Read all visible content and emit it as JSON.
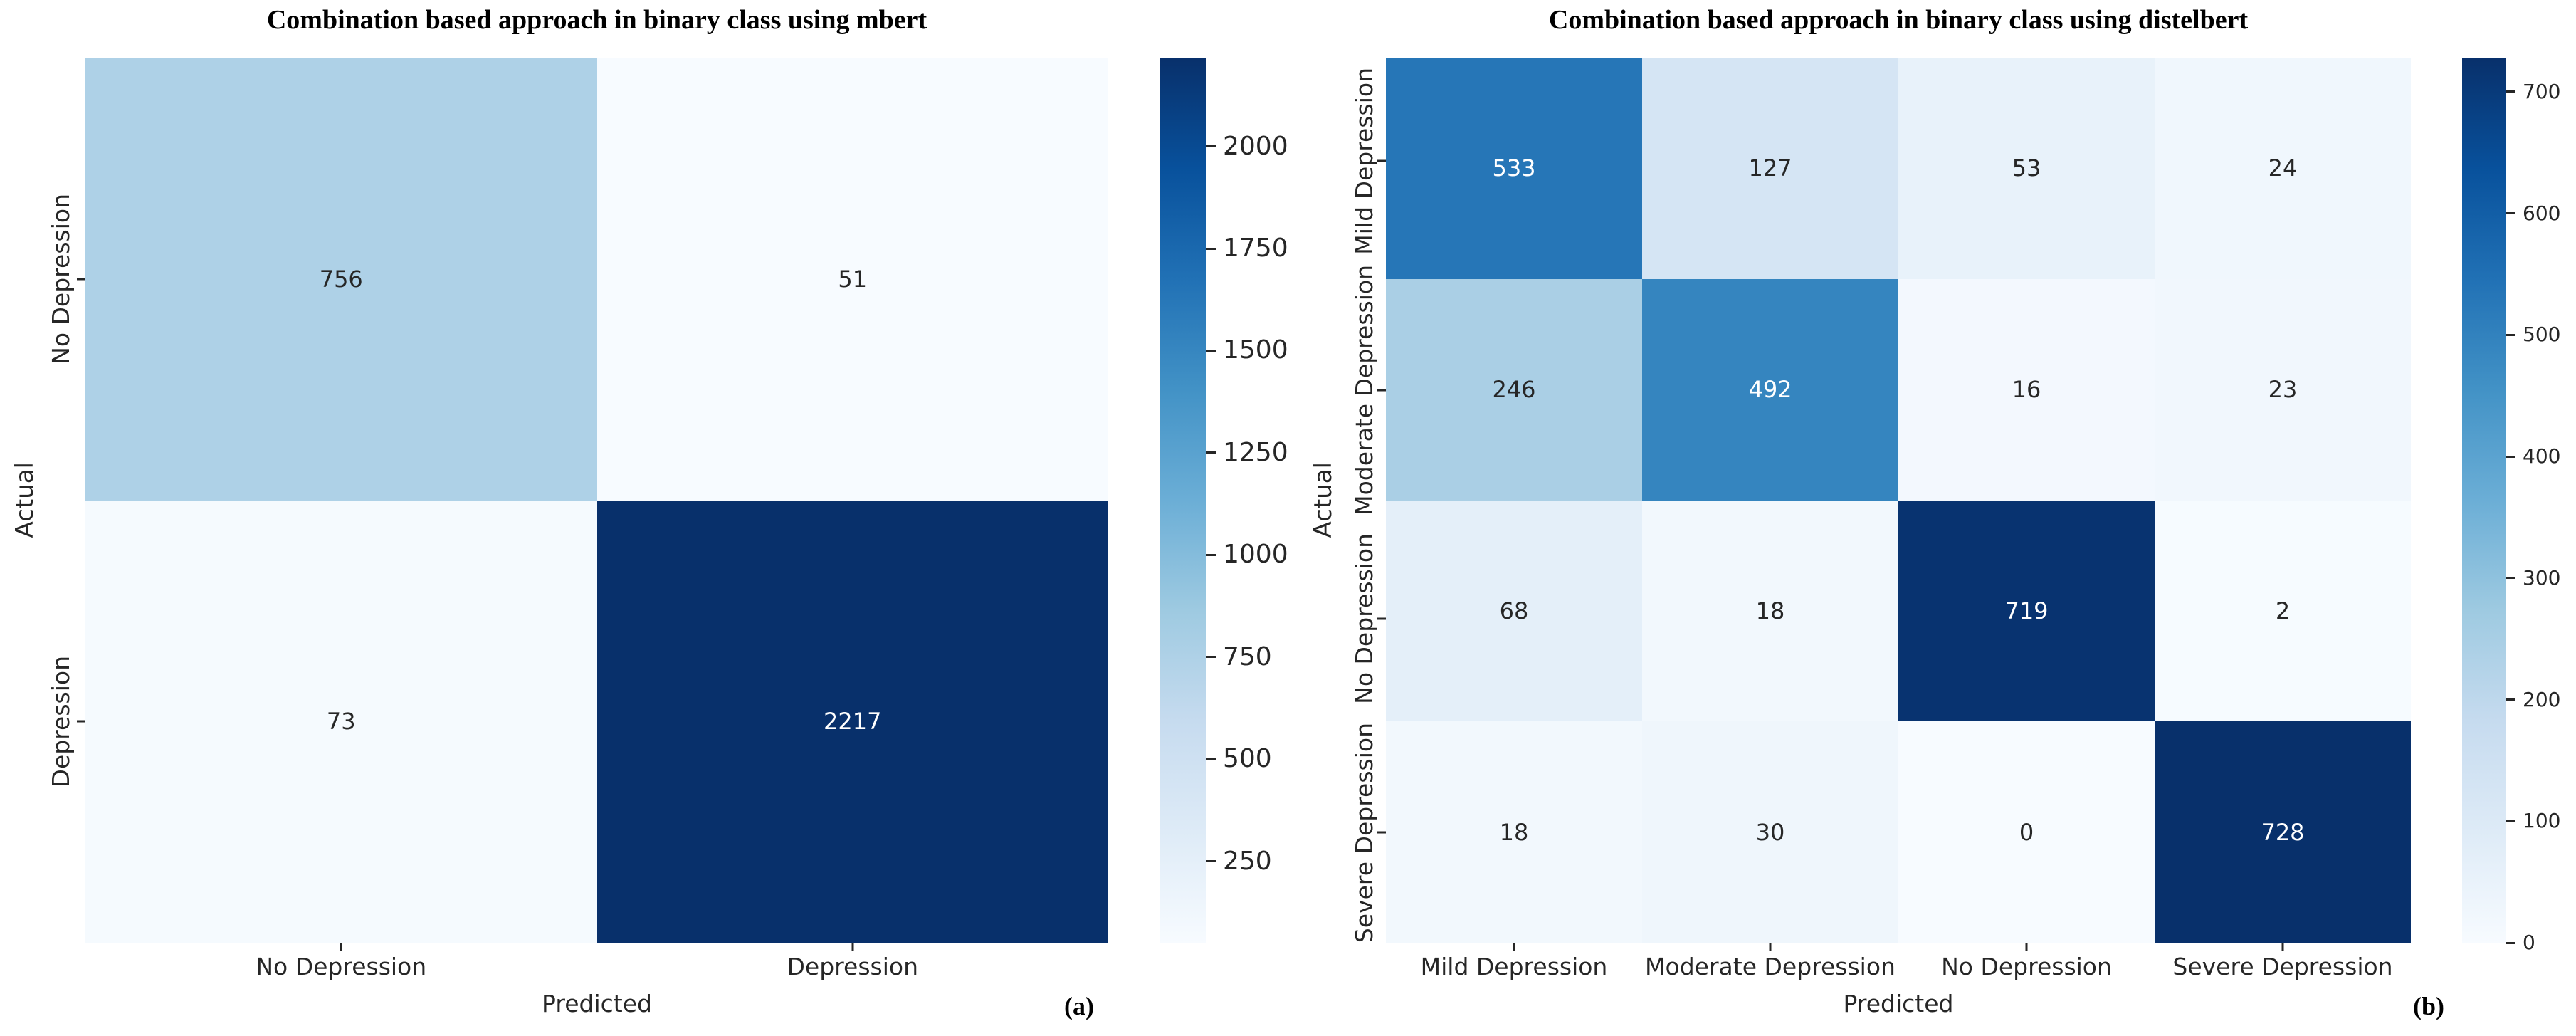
{
  "page": {
    "background": "#ffffff"
  },
  "chart_data": [
    {
      "type": "heatmap",
      "title": "Combination based approach in binary class using mbert",
      "panel_label": "(a)",
      "xlabel": "Predicted",
      "ylabel": "Actual",
      "x_categories": [
        "No Depression",
        "Depression"
      ],
      "y_categories": [
        "No Depression",
        "Depression"
      ],
      "values": [
        [
          756,
          51
        ],
        [
          73,
          2217
        ]
      ],
      "vmin": 51,
      "vmax": 2217,
      "colorbar_ticks": [
        250,
        500,
        750,
        1000,
        1250,
        1500,
        1750,
        2000
      ],
      "colormap": "Blues",
      "legend_position": "right-colorbar",
      "grid": false
    },
    {
      "type": "heatmap",
      "title": "Combination based approach in binary class using distelbert",
      "panel_label": "(b)",
      "xlabel": "Predicted",
      "ylabel": "Actual",
      "x_categories": [
        "Mild Depression",
        "Moderate Depression",
        "No Depression",
        "Severe Depression"
      ],
      "y_categories": [
        "Mild Depression",
        "Moderate Depression",
        "No Depression",
        "Severe Depression"
      ],
      "values": [
        [
          533,
          127,
          53,
          24
        ],
        [
          246,
          492,
          16,
          23
        ],
        [
          68,
          18,
          719,
          2
        ],
        [
          18,
          30,
          0,
          728
        ]
      ],
      "vmin": 0,
      "vmax": 728,
      "colorbar_ticks": [
        0,
        100,
        200,
        300,
        400,
        500,
        600,
        700
      ],
      "colormap": "Blues",
      "legend_position": "right-colorbar",
      "grid": false
    }
  ],
  "colors": {
    "blues_anchors": [
      "#f7fbff",
      "#deebf7",
      "#c6dbef",
      "#9ecae1",
      "#6baed6",
      "#4292c6",
      "#2171b5",
      "#08519c",
      "#08306b"
    ],
    "annotation_dark": "#262626",
    "annotation_light": "#ffffff",
    "tick_color": "#262626",
    "title_color": "#000000"
  }
}
